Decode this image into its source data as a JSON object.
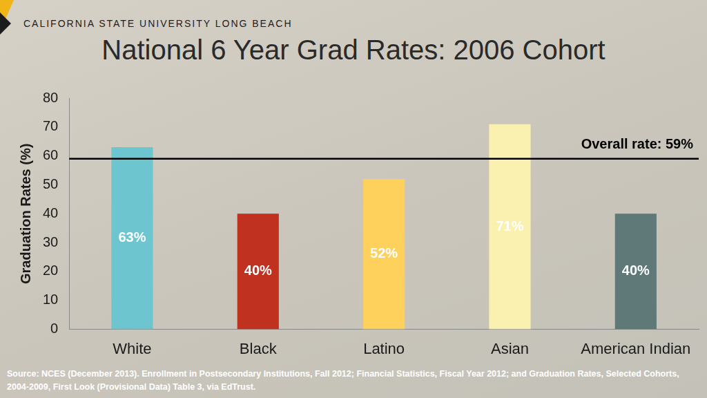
{
  "chart_data": {
    "type": "bar",
    "header": "CALIFORNIA STATE UNIVERSITY LONG BEACH",
    "title": "National 6 Year Grad Rates: 2006 Cohort",
    "y_label": "Graduation Rates (%)",
    "categories": [
      "White",
      "Black",
      "Latino",
      "Asian",
      "American Indian"
    ],
    "values": [
      63,
      40,
      52,
      71,
      40
    ],
    "value_labels": [
      "63%",
      "40%",
      "52%",
      "71%",
      "40%"
    ],
    "colors": [
      "#6cc5cf",
      "#c0311f",
      "#fdd15c",
      "#faf0b0",
      "#5f7878"
    ],
    "data_labels": true,
    "ylim": [
      0,
      80
    ],
    "yticks": [
      0,
      10,
      20,
      30,
      40,
      50,
      60,
      70,
      80
    ],
    "grid": false,
    "annotations": [
      {
        "value": 59,
        "label": "Overall rate: 59%"
      }
    ],
    "source": "Source: NCES (December 2013). Enrollment in Postsecondary Institutions, Fall 2012; Financial Statistics, Fiscal Year 2012; and Graduation Rates, Selected Cohorts, 2004-2009, First Look (Provisional Data) Table 3, via EdTrust."
  }
}
